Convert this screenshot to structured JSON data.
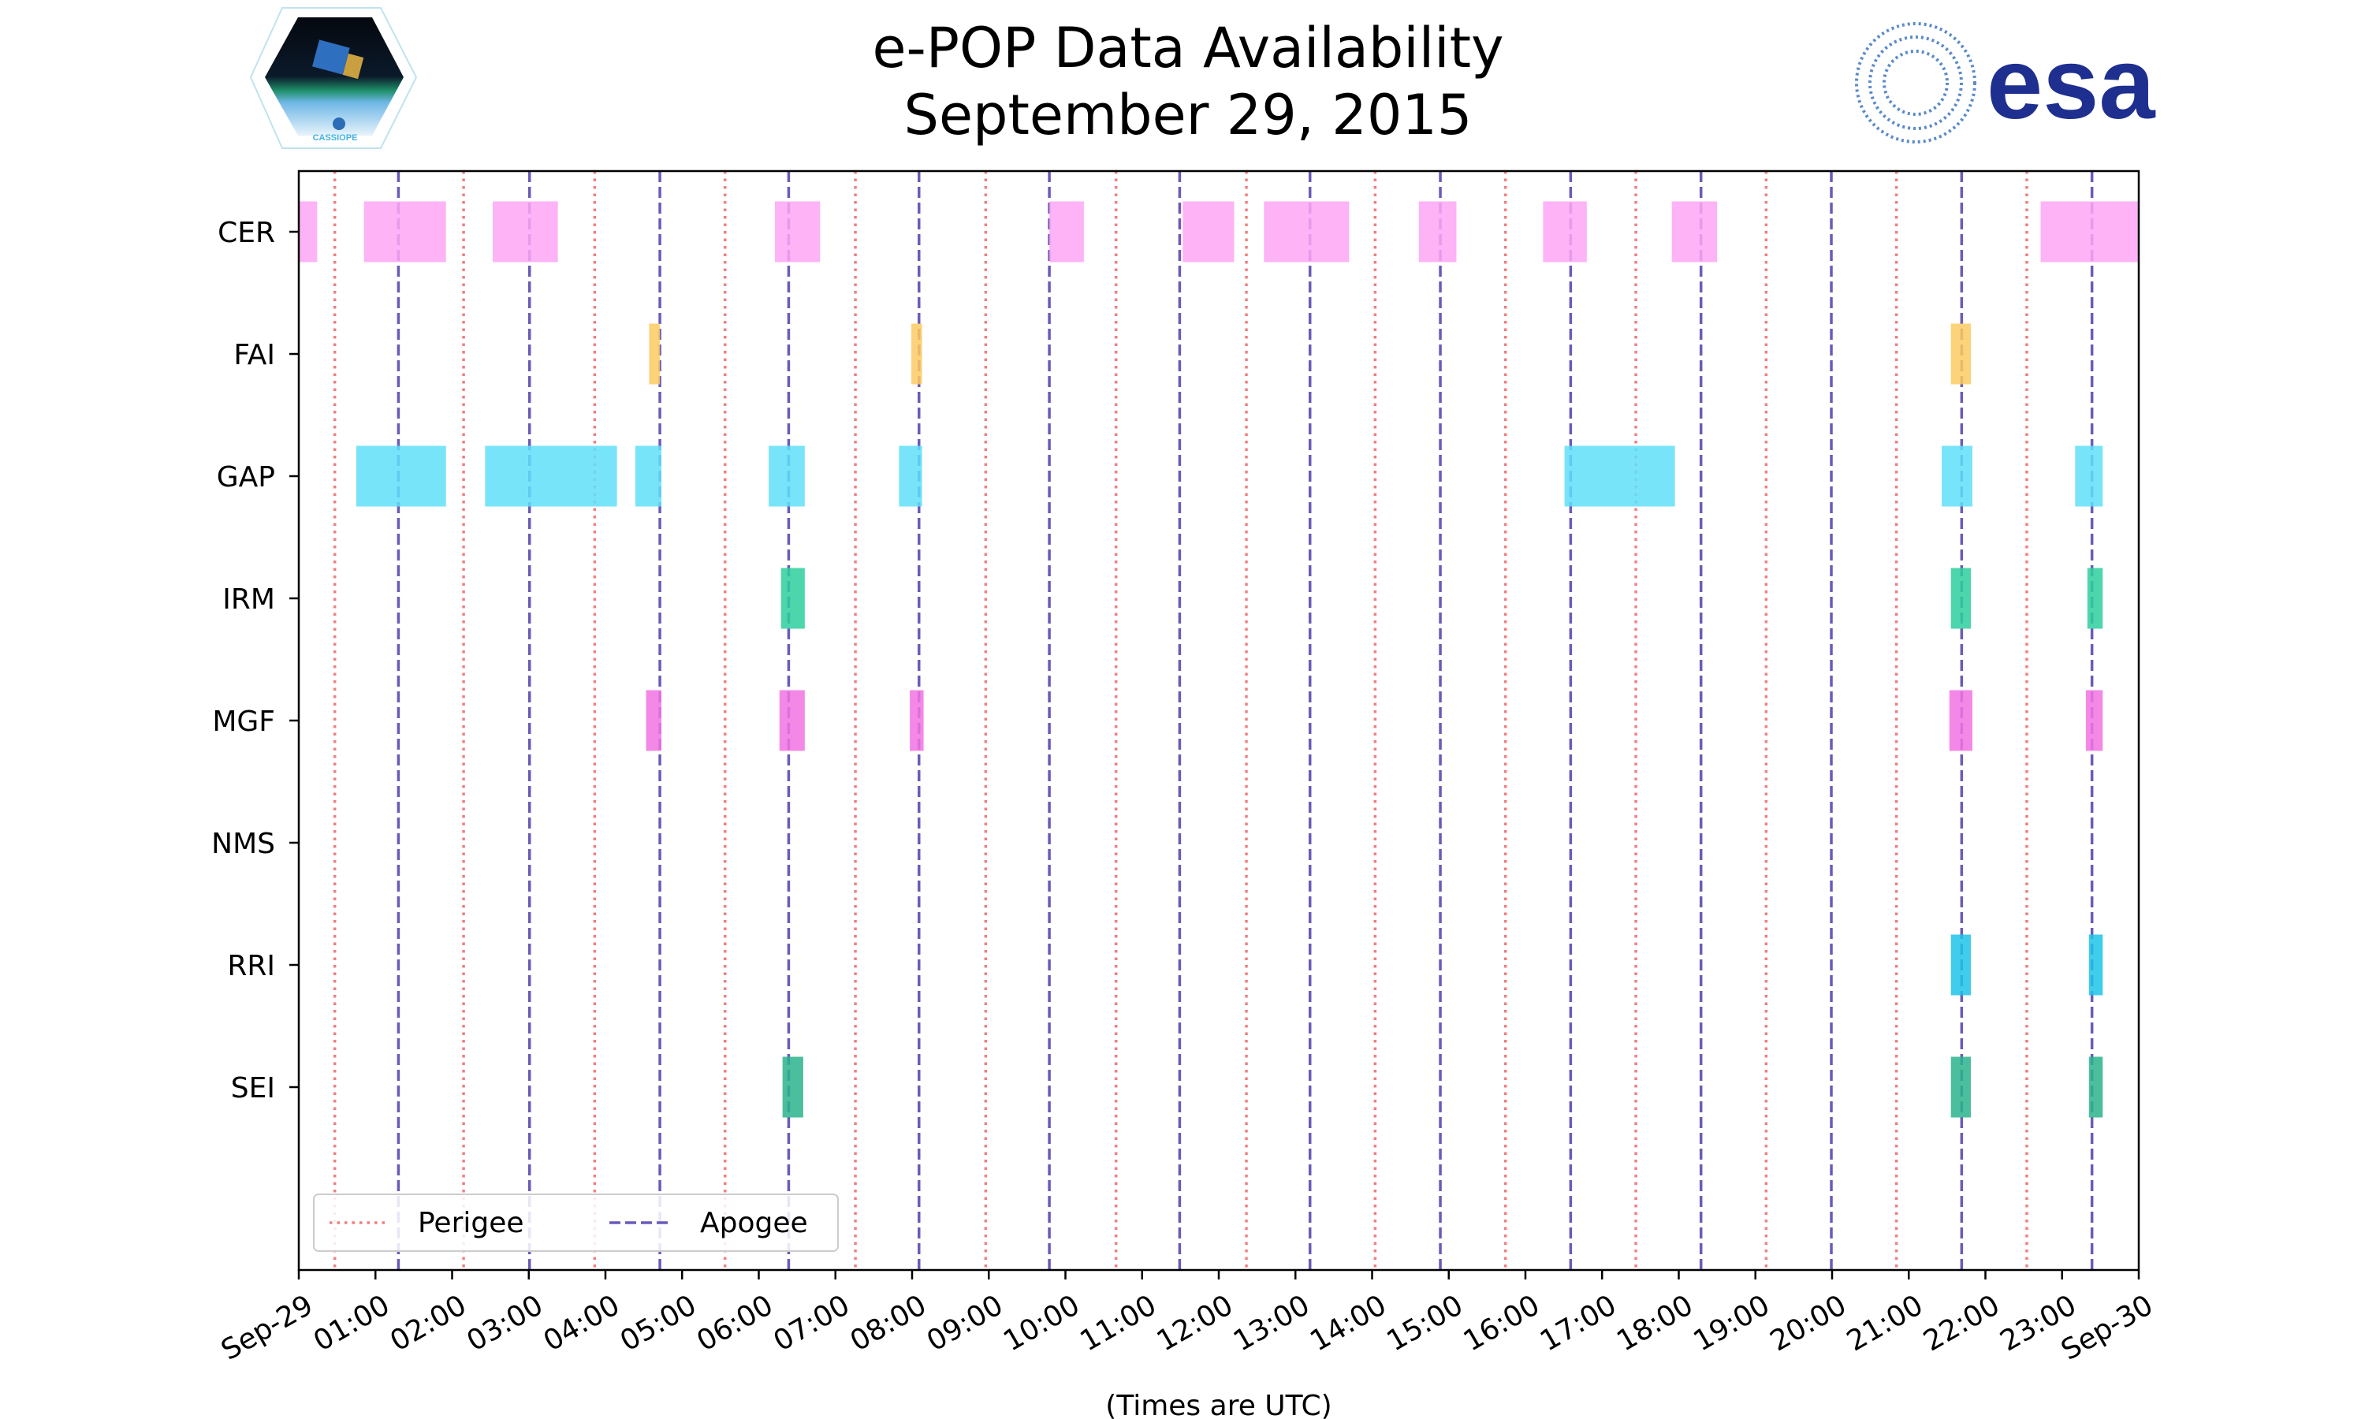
{
  "chart_data": {
    "type": "timeline",
    "title": "e-POP Data Availability",
    "subtitle": "September 29, 2015",
    "xlabel": "(Times are UTC)",
    "ylabel": "",
    "xlim_hours": [
      0,
      24
    ],
    "x_tick_labels": [
      "Sep-29",
      "01:00",
      "02:00",
      "03:00",
      "04:00",
      "05:00",
      "06:00",
      "07:00",
      "08:00",
      "09:00",
      "10:00",
      "11:00",
      "12:00",
      "13:00",
      "14:00",
      "15:00",
      "16:00",
      "17:00",
      "18:00",
      "19:00",
      "20:00",
      "21:00",
      "22:00",
      "23:00",
      "Sep-30"
    ],
    "instruments": [
      "CER",
      "FAI",
      "GAP",
      "IRM",
      "MGF",
      "NMS",
      "RRI",
      "SEI"
    ],
    "series": [
      {
        "name": "CER",
        "color": "#fda6f3",
        "intervals_hours": [
          [
            0,
            0.24
          ],
          [
            0.85,
            1.92
          ],
          [
            2.53,
            3.38
          ],
          [
            6.21,
            6.8
          ],
          [
            9.79,
            10.24
          ],
          [
            11.53,
            12.2
          ],
          [
            12.59,
            13.7
          ],
          [
            14.61,
            15.1
          ],
          [
            16.23,
            16.8
          ],
          [
            17.91,
            18.5
          ],
          [
            22.72,
            24
          ]
        ]
      },
      {
        "name": "FAI",
        "color": "#fbcb62",
        "intervals_hours": [
          [
            4.57,
            4.71
          ],
          [
            7.99,
            8.13
          ],
          [
            21.55,
            21.81
          ]
        ]
      },
      {
        "name": "GAP",
        "color": "#5fdff9",
        "intervals_hours": [
          [
            0.75,
            1.92
          ],
          [
            2.43,
            4.15
          ],
          [
            4.39,
            4.73
          ],
          [
            6.13,
            6.6
          ],
          [
            7.83,
            8.13
          ],
          [
            16.51,
            17.95
          ],
          [
            21.43,
            21.83
          ],
          [
            23.17,
            23.53
          ]
        ]
      },
      {
        "name": "IRM",
        "color": "#2ecf9e",
        "intervals_hours": [
          [
            6.29,
            6.6
          ],
          [
            21.55,
            21.81
          ],
          [
            23.33,
            23.53
          ]
        ]
      },
      {
        "name": "MGF",
        "color": "#f273e3",
        "intervals_hours": [
          [
            4.53,
            4.73
          ],
          [
            6.27,
            6.6
          ],
          [
            7.97,
            8.15
          ],
          [
            21.53,
            21.83
          ],
          [
            23.31,
            23.53
          ]
        ]
      },
      {
        "name": "NMS",
        "color": "#999999",
        "intervals_hours": []
      },
      {
        "name": "RRI",
        "color": "#1ec3e8",
        "intervals_hours": [
          [
            21.55,
            21.81
          ],
          [
            23.35,
            23.53
          ]
        ]
      },
      {
        "name": "SEI",
        "color": "#2bb38c",
        "intervals_hours": [
          [
            6.31,
            6.58
          ],
          [
            21.55,
            21.81
          ],
          [
            23.35,
            23.53
          ]
        ]
      }
    ],
    "perigee_hours": [
      0.47,
      2.15,
      3.86,
      5.56,
      7.26,
      8.96,
      10.66,
      12.36,
      14.04,
      15.74,
      17.44,
      19.14,
      20.84,
      22.54
    ],
    "apogee_hours": [
      1.3,
      3.01,
      4.71,
      6.39,
      8.09,
      9.79,
      11.49,
      13.19,
      14.89,
      16.59,
      18.29,
      19.99,
      21.69,
      23.39
    ],
    "perigee_color": "#f07f7f",
    "apogee_color": "#6a5bb8",
    "legend": {
      "placement": "lower-left",
      "entries": [
        "Perigee",
        "Apogee"
      ]
    },
    "grid": false
  },
  "logos": {
    "left": "CASSIOPE",
    "right": "esa"
  }
}
